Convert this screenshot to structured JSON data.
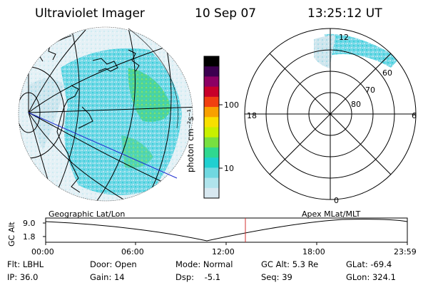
{
  "header": {
    "instrument": "Ultraviolet Imager",
    "date": "10 Sep 07",
    "time": "13:25:12 UT"
  },
  "colorbar": {
    "label": "photon cm⁻²s⁻¹",
    "ticks": [
      "100",
      "10"
    ],
    "colors": [
      "#000000",
      "#3c0050",
      "#8c0064",
      "#c8002a",
      "#f04010",
      "#f8a000",
      "#f8e000",
      "#c8f000",
      "#78e040",
      "#30d890",
      "#20d0d0",
      "#70d8e0",
      "#b0e4ec",
      "#d8e8f0"
    ]
  },
  "polar": {
    "mlt_labels": [
      "12",
      "18",
      "6",
      "0"
    ],
    "lat_labels": [
      "60",
      "70",
      "80"
    ]
  },
  "timeline": {
    "ylabel": "GC Alt",
    "yticks": [
      "9.0",
      "1.8"
    ],
    "left_caption": "Geographic Lat/Lon",
    "right_caption": "Apex MLat/MLT",
    "xticks": [
      "00:00",
      "06:00",
      "12:00",
      "18:00",
      "23:59"
    ]
  },
  "info": {
    "row1": [
      "Flt: LBHL",
      "Door: Open",
      "Mode: Normal",
      "GC Alt: 5.3 Re",
      "GLat: -69.4"
    ],
    "row2": [
      "IP: 36.0",
      "Gain: 14",
      "Dsp:    -5.1",
      "Seq: 39",
      "GLon: 324.1"
    ]
  },
  "accent": {
    "current_time_marker": "#d03030",
    "track_line": "#2030d0"
  }
}
